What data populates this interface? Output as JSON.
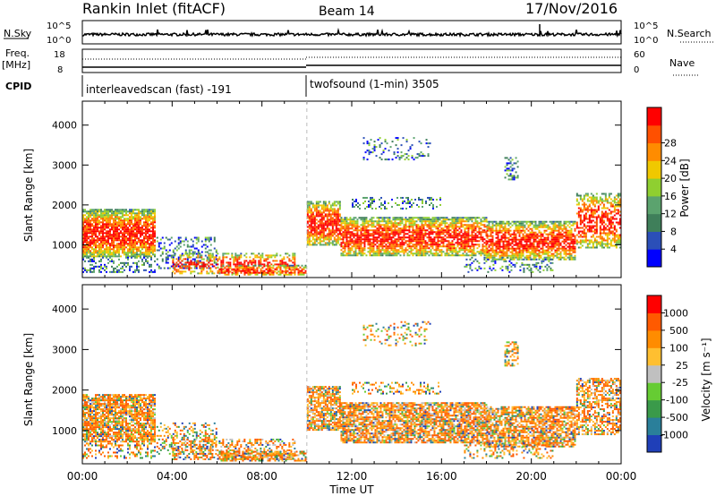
{
  "header": {
    "title": "Rankin Inlet (fitACF)",
    "beam": "Beam 14",
    "date": "17/Nov/2016"
  },
  "top_panels": {
    "nsky_label": "N.Sky",
    "nsky_ticks": [
      "10^5",
      "10^0"
    ],
    "nsearch_label": "N.Search",
    "nsearch_ticks": [
      "10^5",
      "10^0"
    ],
    "freq_label_1": "Freq.",
    "freq_label_2": "[MHz]",
    "freq_ticks": [
      "18",
      "8"
    ],
    "nave_label": "Nave",
    "nave_ticks": [
      "60",
      "0"
    ],
    "cpid_label": "CPID",
    "cpid_1": "interleavedscan (fast) -191",
    "cpid_2": "twofsound (1-min) 3505"
  },
  "chart_data": [
    {
      "type": "heatmap",
      "name": "power",
      "ylabel": "Slant Range [km]",
      "xlabel": "",
      "x_ticks": [
        "00:00",
        "04:00",
        "08:00",
        "12:00",
        "16:00",
        "20:00",
        "00:00"
      ],
      "y_ticks": [
        "1000",
        "2000",
        "3000",
        "4000"
      ],
      "ylim": [
        180,
        4600
      ],
      "colorbar_label": "Power [dB]",
      "colorbar_ticks": [
        "4",
        "8",
        "12",
        "16",
        "20",
        "24",
        "28"
      ],
      "colors": [
        "#0000ff",
        "#2b4fb8",
        "#3f7f5a",
        "#5ba36e",
        "#8fcf30",
        "#f0c800",
        "#ff8c00",
        "#ff5000",
        "#ff0000"
      ]
    },
    {
      "type": "heatmap",
      "name": "velocity",
      "ylabel": "Slant Range [km]",
      "xlabel": "Time UT",
      "x_ticks": [
        "00:00",
        "04:00",
        "08:00",
        "12:00",
        "16:00",
        "20:00",
        "00:00"
      ],
      "y_ticks": [
        "1000",
        "2000",
        "3000",
        "4000"
      ],
      "ylim": [
        180,
        4600
      ],
      "colorbar_label": "Velocity [m s⁻¹]",
      "colorbar_ticks": [
        "1000",
        "500",
        "100",
        "25",
        "-25",
        "-100",
        "-500",
        "-1000"
      ],
      "colors": [
        "#1f3fb8",
        "#2a7f9a",
        "#3a9a4a",
        "#66cc33",
        "#c0c0c0",
        "#ffbf30",
        "#ff8c00",
        "#ff5a00",
        "#ff0000"
      ]
    }
  ]
}
